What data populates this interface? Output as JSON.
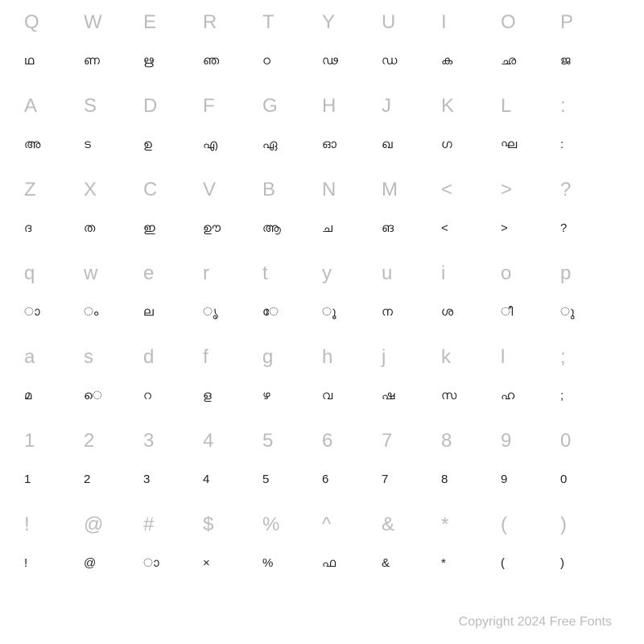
{
  "grid": {
    "columns": 10,
    "key_color": "#bbbbbb",
    "mapped_color": "#222222",
    "key_fontsize": 24,
    "mapped_fontsize": 15,
    "background": "#ffffff",
    "rows": [
      {
        "keys": [
          "Q",
          "W",
          "E",
          "R",
          "T",
          "Y",
          "U",
          "I",
          "O",
          "P"
        ],
        "mapped": [
          "ഥ",
          "ണ",
          "ഋ",
          "ഞ",
          "ഠ",
          "ഢ",
          "ഡ",
          "ക",
          "ഛ",
          "ജ"
        ]
      },
      {
        "keys": [
          "A",
          "S",
          "D",
          "F",
          "G",
          "H",
          "J",
          "K",
          "L",
          ":"
        ],
        "mapped": [
          "അ",
          "ട",
          "ഉ",
          "എ",
          "ഏ",
          "ഓ",
          "ഖ",
          "ഗ",
          "ഘ",
          ":"
        ]
      },
      {
        "keys": [
          "Z",
          "X",
          "C",
          "V",
          "B",
          "N",
          "M",
          "<",
          ">",
          "?"
        ],
        "mapped": [
          "ദ",
          "ത",
          "ഇ",
          "ഊ",
          "ആ",
          "ച",
          "ങ",
          "<",
          ">",
          "?"
        ]
      },
      {
        "keys": [
          "q",
          "w",
          "e",
          "r",
          "t",
          "y",
          "u",
          "i",
          "o",
          "p"
        ],
        "mapped": [
          "ാ",
          "ം",
          "ല",
          "ൃ",
          "േ",
          "ൂ",
          "ന",
          "ശ",
          "ീ",
          "ു"
        ]
      },
      {
        "keys": [
          "a",
          "s",
          "d",
          "f",
          "g",
          "h",
          "j",
          "k",
          "l",
          ";"
        ],
        "mapped": [
          "മ",
          "െ",
          "റ",
          "ള",
          "ഴ",
          "വ",
          "ഷ",
          "സ",
          "ഹ",
          ";"
        ]
      },
      {
        "keys": [
          "1",
          "2",
          "3",
          "4",
          "5",
          "6",
          "7",
          "8",
          "9",
          "0"
        ],
        "mapped": [
          "1",
          "2",
          "3",
          "4",
          "5",
          "6",
          "7",
          "8",
          "9",
          "0"
        ]
      },
      {
        "keys": [
          "!",
          "@",
          "#",
          "$",
          "%",
          "^",
          "&",
          "*",
          "(",
          ")"
        ],
        "mapped": [
          "!",
          "@",
          "ാ",
          "×",
          "%",
          "ഫ",
          "&",
          "*",
          "(",
          ")"
        ]
      }
    ]
  },
  "footer": {
    "text": "Copyright 2024 Free Fonts"
  }
}
